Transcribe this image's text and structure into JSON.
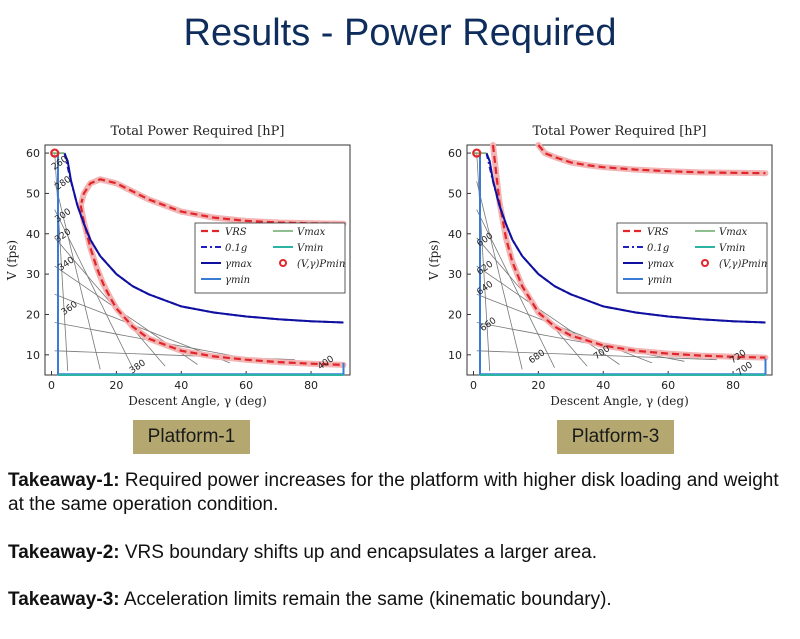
{
  "slide": {
    "title": "Results - Power Required",
    "platform_labels": [
      "Platform-1",
      "Platform-3"
    ],
    "takeaways": [
      {
        "label": "Takeaway-1:",
        "text": " Required power increases for the platform with higher disk loading and weight at the same operation condition."
      },
      {
        "label": "Takeaway-2:",
        "text": " VRS boundary shifts up and encapsulates a larger area."
      },
      {
        "label": "Takeaway-3:",
        "text": " Acceleration limits remain the same (kinematic boundary)."
      }
    ]
  },
  "colors": {
    "vrs": "#e0262b",
    "g01": "#2020c0",
    "gamma_max": "#1010a0",
    "gamma_min": "#3a7bd5",
    "v_max": "#6aa86a",
    "v_min": "#2bb3a3",
    "pmin": "#e0262b"
  },
  "chart_data": [
    {
      "type": "line",
      "title": "Total Power Required [hP]",
      "xlabel": "Descent Angle, γ (deg)",
      "ylabel": "V (fps)",
      "xlim": [
        -2,
        92
      ],
      "ylim": [
        5,
        62
      ],
      "xticks": [
        0,
        20,
        40,
        60,
        80
      ],
      "yticks": [
        10,
        20,
        30,
        40,
        50,
        60
      ],
      "legend": {
        "placement": "center-right",
        "entries": [
          "VRS",
          "0.1g",
          "γmax",
          "γmin",
          "Vmax",
          "Vmin",
          "(V,γ)Pmin"
        ]
      },
      "series": [
        {
          "name": "VRS",
          "style": "dashed",
          "x": [
            9,
            10,
            12,
            15,
            20,
            25,
            30,
            40,
            50,
            60,
            70,
            80,
            90
          ],
          "y": [
            47,
            50,
            52.5,
            53.5,
            52.5,
            50.5,
            48.5,
            45.5,
            44,
            43.2,
            42.8,
            42.6,
            42.5
          ]
        },
        {
          "name": "VRS",
          "style": "dashed",
          "x": [
            9,
            10,
            12,
            14,
            16,
            18,
            20,
            25,
            30,
            40,
            50,
            60,
            70,
            80,
            90
          ],
          "y": [
            47,
            43,
            36.5,
            31.5,
            27.5,
            24.3,
            21.5,
            17,
            14,
            11,
            9.6,
            8.8,
            8.2,
            7.8,
            7.5
          ]
        },
        {
          "name": "0.1g",
          "style": "dashdot",
          "x": [
            4,
            6,
            8,
            10,
            12,
            15,
            20,
            25,
            30,
            40,
            50,
            60,
            70,
            80,
            90
          ],
          "y": [
            60,
            53,
            47,
            42.5,
            38.5,
            34.5,
            30,
            27,
            25,
            22,
            20.5,
            19.5,
            18.8,
            18.3,
            18
          ]
        },
        {
          "name": "γmax",
          "style": "solid",
          "x": [
            4,
            5,
            6,
            8,
            10,
            12,
            15,
            20,
            25,
            30,
            40,
            50,
            60,
            70,
            80,
            90
          ],
          "y": [
            60,
            58,
            53.2,
            47,
            42.5,
            38.5,
            34.5,
            30,
            27,
            25,
            22,
            20.5,
            19.5,
            18.8,
            18.3,
            18
          ]
        },
        {
          "name": "γmin",
          "style": "solid",
          "x": [
            2,
            2,
            90,
            90
          ],
          "y": [
            60,
            5.2,
            5.2,
            8
          ]
        },
        {
          "name": "Vmax",
          "style": "solid",
          "x": [
            0,
            4
          ],
          "y": [
            60,
            60
          ]
        },
        {
          "name": "Vmin",
          "style": "solid",
          "x": [
            2,
            90
          ],
          "y": [
            5,
            5
          ]
        }
      ],
      "contours": [
        {
          "label": "260",
          "label_at": [
            3,
            57
          ]
        },
        {
          "label": "280",
          "label_at": [
            4,
            52
          ]
        },
        {
          "label": "300",
          "label_at": [
            4,
            44
          ]
        },
        {
          "label": "320",
          "label_at": [
            4,
            39
          ]
        },
        {
          "label": "340",
          "label_at": [
            5,
            32
          ]
        },
        {
          "label": "360",
          "label_at": [
            6,
            21
          ]
        },
        {
          "label": "380",
          "label_at": [
            27,
            6.5
          ]
        },
        {
          "label": "400",
          "label_at": [
            85,
            7.5
          ]
        }
      ],
      "points": [
        {
          "name": "(V,γ)Pmin",
          "x": 1,
          "y": 60
        }
      ]
    },
    {
      "type": "line",
      "title": "Total Power Required [hP]",
      "xlabel": "Descent Angle, γ (deg)",
      "ylabel": "V (fps)",
      "xlim": [
        -2,
        92
      ],
      "ylim": [
        5,
        62
      ],
      "xticks": [
        0,
        20,
        40,
        60,
        80
      ],
      "yticks": [
        10,
        20,
        30,
        40,
        50,
        60
      ],
      "legend": {
        "placement": "center-right",
        "entries": [
          "VRS",
          "0.1g",
          "γmax",
          "γmin",
          "Vmax",
          "Vmin",
          "(V,γ)Pmin"
        ]
      },
      "series": [
        {
          "name": "VRS",
          "style": "dashed",
          "x": [
            20,
            22,
            25,
            30,
            35,
            40,
            50,
            60,
            70,
            80,
            90
          ],
          "y": [
            62,
            60,
            59,
            57.7,
            57,
            56.5,
            55.9,
            55.5,
            55.2,
            55.1,
            55
          ]
        },
        {
          "name": "VRS",
          "style": "dashed",
          "x": [
            6,
            7,
            8,
            10,
            12,
            15,
            20,
            25,
            30,
            40,
            50,
            60,
            70,
            80,
            90
          ],
          "y": [
            62,
            55,
            48,
            39,
            33,
            27,
            20.5,
            17,
            14.8,
            12.3,
            11,
            10.3,
            9.8,
            9.5,
            9.3
          ]
        },
        {
          "name": "0.1g",
          "style": "dashdot",
          "x": [
            4,
            6,
            8,
            10,
            12,
            15,
            20,
            25,
            30,
            40,
            50,
            60,
            70,
            80,
            90
          ],
          "y": [
            60,
            53,
            47,
            42.5,
            38.5,
            34.5,
            30,
            27,
            25,
            22,
            20.5,
            19.5,
            18.8,
            18.3,
            18
          ]
        },
        {
          "name": "γmax",
          "style": "solid",
          "x": [
            4,
            5,
            6,
            8,
            10,
            12,
            15,
            20,
            25,
            30,
            40,
            50,
            60,
            70,
            80,
            90
          ],
          "y": [
            60,
            58,
            53.2,
            47,
            42.5,
            38.5,
            34.5,
            30,
            27,
            25,
            22,
            20.5,
            19.5,
            18.8,
            18.3,
            18
          ]
        },
        {
          "name": "γmin",
          "style": "solid",
          "x": [
            2,
            2,
            90,
            90
          ],
          "y": [
            60,
            5.2,
            5.2,
            9
          ]
        },
        {
          "name": "Vmax",
          "style": "solid",
          "x": [
            0,
            4
          ],
          "y": [
            60,
            60
          ]
        },
        {
          "name": "Vmin",
          "style": "solid",
          "x": [
            2,
            90
          ],
          "y": [
            5,
            5
          ]
        }
      ],
      "contours": [
        {
          "label": "600",
          "label_at": [
            4,
            38
          ]
        },
        {
          "label": "620",
          "label_at": [
            4,
            31
          ]
        },
        {
          "label": "640",
          "label_at": [
            4,
            26
          ]
        },
        {
          "label": "660",
          "label_at": [
            5,
            17
          ]
        },
        {
          "label": "680",
          "label_at": [
            20,
            9
          ]
        },
        {
          "label": "700",
          "label_at": [
            40,
            10
          ]
        },
        {
          "label": "720",
          "label_at": [
            82,
            9
          ]
        },
        {
          "label": "700",
          "label_at": [
            84,
            6
          ]
        }
      ],
      "points": [
        {
          "name": "(V,γ)Pmin",
          "x": 1,
          "y": 60
        }
      ]
    }
  ]
}
